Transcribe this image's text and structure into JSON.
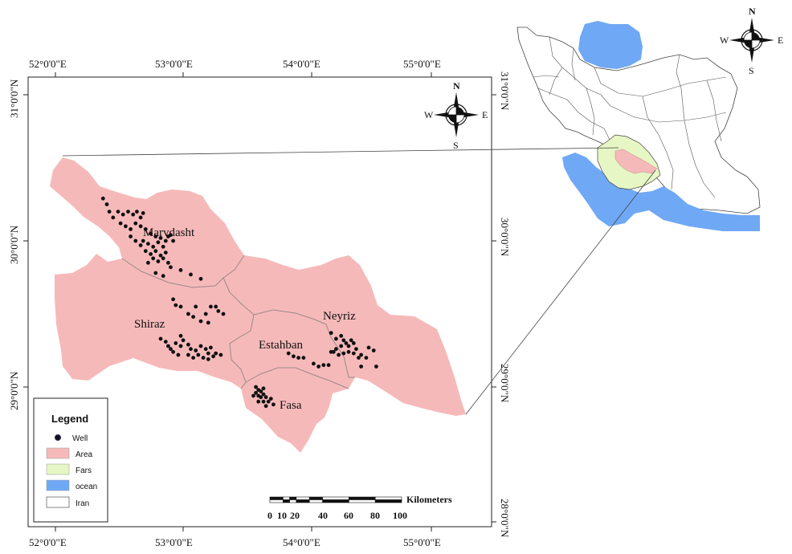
{
  "colors": {
    "area": "#f6b9b9",
    "fars": "#e6f6c4",
    "ocean": "#6fa8f5",
    "iran": "#ffffff",
    "well": "#111111",
    "district_border": "#9a8a8a",
    "frame": "#222222"
  },
  "map": {
    "longitude_labels": [
      "52°0'0\"E",
      "53°0'0\"E",
      "54°0'0\"E",
      "55°0'0\"E"
    ],
    "latitude_labels": [
      "31°0'0\"N",
      "30°0'0\"N",
      "29°0'0\"N",
      "28°0'0\"N"
    ]
  },
  "districts": [
    {
      "name": "Marvdasht"
    },
    {
      "name": "Shiraz"
    },
    {
      "name": "Estahban"
    },
    {
      "name": "Neyriz"
    },
    {
      "name": "Fasa"
    }
  ],
  "wells": {
    "marvdasht_cluster": [
      [
        52.38,
        30.29
      ],
      [
        52.41,
        30.25
      ],
      [
        52.43,
        30.2
      ],
      [
        52.46,
        30.16
      ],
      [
        52.5,
        30.2
      ],
      [
        52.54,
        30.18
      ],
      [
        52.58,
        30.2
      ],
      [
        52.62,
        30.18
      ],
      [
        52.65,
        30.2
      ],
      [
        52.68,
        30.16
      ],
      [
        52.7,
        30.19
      ],
      [
        52.52,
        30.12
      ],
      [
        52.56,
        30.1
      ],
      [
        52.6,
        30.08
      ],
      [
        52.64,
        30.12
      ],
      [
        52.68,
        30.1
      ],
      [
        52.72,
        30.08
      ],
      [
        52.76,
        30.05
      ],
      [
        52.8,
        30.03
      ],
      [
        52.84,
        30.02
      ],
      [
        52.88,
        30.0
      ],
      [
        52.9,
        30.03
      ],
      [
        52.94,
        30.0
      ],
      [
        52.7,
        30.0
      ],
      [
        52.74,
        29.98
      ],
      [
        52.78,
        29.96
      ],
      [
        52.82,
        29.99
      ],
      [
        52.86,
        29.96
      ],
      [
        52.72,
        29.93
      ],
      [
        52.76,
        29.91
      ],
      [
        52.8,
        29.93
      ],
      [
        52.84,
        29.9
      ],
      [
        52.88,
        29.92
      ],
      [
        52.78,
        29.88
      ],
      [
        52.82,
        29.86
      ],
      [
        52.86,
        29.88
      ],
      [
        52.9,
        29.85
      ],
      [
        52.74,
        29.85
      ],
      [
        52.92,
        29.82
      ],
      [
        53.0,
        29.8
      ],
      [
        53.08,
        29.77
      ],
      [
        53.16,
        29.74
      ],
      [
        52.8,
        29.78
      ],
      [
        52.86,
        29.76
      ],
      [
        52.6,
        30.03
      ],
      [
        52.64,
        30.0
      ],
      [
        52.68,
        29.97
      ],
      [
        52.92,
        30.04
      ]
    ],
    "shiraz_cluster": [
      [
        52.94,
        29.6
      ],
      [
        52.96,
        29.56
      ],
      [
        53.0,
        29.55
      ],
      [
        53.06,
        29.5
      ],
      [
        53.12,
        29.55
      ],
      [
        53.2,
        29.5
      ],
      [
        53.24,
        29.55
      ],
      [
        53.28,
        29.55
      ],
      [
        53.3,
        29.52
      ],
      [
        53.34,
        29.5
      ],
      [
        53.16,
        29.45
      ],
      [
        53.22,
        29.44
      ],
      [
        53.1,
        29.48
      ],
      [
        52.84,
        29.33
      ],
      [
        52.88,
        29.31
      ],
      [
        52.9,
        29.28
      ],
      [
        52.92,
        29.26
      ],
      [
        52.96,
        29.3
      ],
      [
        53.0,
        29.28
      ],
      [
        53.02,
        29.32
      ],
      [
        53.06,
        29.29
      ],
      [
        53.08,
        29.26
      ],
      [
        53.12,
        29.25
      ],
      [
        53.16,
        29.28
      ],
      [
        53.2,
        29.26
      ],
      [
        53.22,
        29.23
      ],
      [
        53.26,
        29.21
      ],
      [
        53.28,
        29.23
      ],
      [
        53.32,
        29.22
      ],
      [
        53.18,
        29.2
      ],
      [
        53.22,
        29.19
      ],
      [
        53.14,
        29.22
      ],
      [
        53.06,
        29.22
      ],
      [
        52.98,
        29.22
      ],
      [
        52.94,
        29.24
      ],
      [
        53.1,
        29.2
      ],
      [
        53.24,
        29.27
      ],
      [
        53.0,
        29.35
      ]
    ],
    "estahban_cluster": [
      [
        53.86,
        29.23
      ],
      [
        53.9,
        29.21
      ],
      [
        53.94,
        29.2
      ],
      [
        53.98,
        29.2
      ],
      [
        54.06,
        29.16
      ],
      [
        54.1,
        29.14
      ],
      [
        54.14,
        29.15
      ],
      [
        54.18,
        29.15
      ]
    ],
    "neyriz_cluster": [
      [
        54.2,
        29.37
      ],
      [
        54.24,
        29.33
      ],
      [
        54.28,
        29.35
      ],
      [
        54.3,
        29.32
      ],
      [
        54.32,
        29.3
      ],
      [
        54.34,
        29.28
      ],
      [
        54.36,
        29.32
      ],
      [
        54.38,
        29.3
      ],
      [
        54.4,
        29.26
      ],
      [
        54.28,
        29.28
      ],
      [
        54.24,
        29.26
      ],
      [
        54.22,
        29.24
      ],
      [
        54.2,
        29.24
      ],
      [
        54.26,
        29.22
      ],
      [
        54.3,
        29.23
      ],
      [
        54.34,
        29.24
      ],
      [
        54.38,
        29.23
      ],
      [
        54.42,
        29.2
      ],
      [
        54.44,
        29.22
      ],
      [
        54.48,
        29.2
      ],
      [
        54.5,
        29.27
      ],
      [
        54.54,
        29.25
      ],
      [
        54.56,
        29.14
      ],
      [
        54.44,
        29.14
      ]
    ],
    "fasa_cluster": [
      [
        53.6,
        29.0
      ],
      [
        53.62,
        28.98
      ],
      [
        53.64,
        28.97
      ],
      [
        53.66,
        28.99
      ],
      [
        53.6,
        28.96
      ],
      [
        53.62,
        28.94
      ],
      [
        53.64,
        28.93
      ],
      [
        53.66,
        28.95
      ],
      [
        53.68,
        28.93
      ],
      [
        53.7,
        28.9
      ],
      [
        53.72,
        28.92
      ],
      [
        53.58,
        28.94
      ],
      [
        53.66,
        28.9
      ],
      [
        53.62,
        28.9
      ],
      [
        53.74,
        28.88
      ],
      [
        53.68,
        28.87
      ]
    ]
  },
  "inset_iran": {},
  "compass": {
    "n": "N",
    "s": "S",
    "e": "E",
    "w": "W"
  },
  "scale_bar": {
    "unit_label": "Kilometers",
    "ticks": [
      "0",
      "10",
      "20",
      "40",
      "60",
      "80",
      "100"
    ]
  },
  "legend": {
    "title": "Legend",
    "items": [
      {
        "label": "Well"
      },
      {
        "label": "Area"
      },
      {
        "label": "Fars"
      },
      {
        "label": "ocean"
      },
      {
        "label": "Iran"
      }
    ]
  }
}
